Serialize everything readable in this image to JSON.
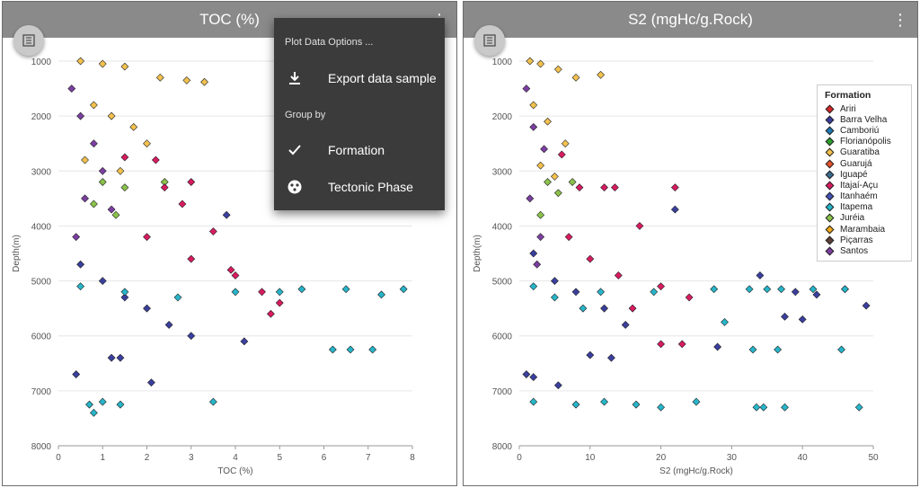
{
  "left_panel": {
    "title": "TOC (%)",
    "kebab": "⋮",
    "x_axis_label": "TOC (%)",
    "y_axis_label": "Depth(m)"
  },
  "right_panel": {
    "title": "S2 (mgHc/g.Rock)",
    "kebab": "⋮",
    "x_axis_label": "S2 (mgHc/g.Rock)",
    "y_axis_label": "Depth(m)"
  },
  "menu": {
    "title": "Plot Data Options ...",
    "export_label": "Export data sample",
    "group_by_label": "Group by",
    "formation_label": "Formation",
    "tectonic_label": "Tectonic Phase",
    "icons": [
      "download-icon",
      "check-icon",
      "tectonic-icon"
    ]
  },
  "legend": {
    "title": "Formation",
    "items": [
      {
        "label": "Ariri",
        "color": "#d62728"
      },
      {
        "label": "Barra Velha",
        "color": "#3a3f9e"
      },
      {
        "label": "Camboriú",
        "color": "#1f77b4"
      },
      {
        "label": "Florianópolis",
        "color": "#2ca02c"
      },
      {
        "label": "Guaratiba",
        "color": "#f2c14e"
      },
      {
        "label": "Guarujá",
        "color": "#e5532b"
      },
      {
        "label": "Iguapé",
        "color": "#3b6b8f"
      },
      {
        "label": "Itajaí-Açu",
        "color": "#d81b60"
      },
      {
        "label": "Itanhaém",
        "color": "#4052b5"
      },
      {
        "label": "Itapema",
        "color": "#26b5c9"
      },
      {
        "label": "Juréia",
        "color": "#8bc34a"
      },
      {
        "label": "Marambaia",
        "color": "#f0a81a"
      },
      {
        "label": "Piçarras",
        "color": "#5d4037"
      },
      {
        "label": "Santos",
        "color": "#7b3fa0"
      }
    ]
  },
  "chart_data": [
    {
      "type": "scatter",
      "title": "TOC (%)",
      "xlabel": "TOC (%)",
      "ylabel": "Depth(m)",
      "xlim": [
        0,
        8
      ],
      "ylim": [
        8000,
        1000
      ],
      "x_ticks": [
        "0",
        "1",
        "2",
        "3",
        "4",
        "5",
        "6",
        "7",
        "8"
      ],
      "y_ticks": [
        "1000",
        "2000",
        "3000",
        "4000",
        "5000",
        "6000",
        "7000",
        "8000"
      ],
      "grid": "horizontal",
      "series": [
        {
          "name": "Guaratiba",
          "color": "#f2c14e",
          "points": [
            [
              0.5,
              1000
            ],
            [
              1.0,
              1050
            ],
            [
              1.5,
              1100
            ],
            [
              2.3,
              1300
            ],
            [
              2.9,
              1350
            ],
            [
              3.3,
              1380
            ],
            [
              0.8,
              1800
            ],
            [
              1.2,
              2000
            ],
            [
              1.7,
              2200
            ],
            [
              2.0,
              2500
            ],
            [
              0.6,
              2800
            ],
            [
              1.4,
              3000
            ]
          ]
        },
        {
          "name": "Santos",
          "color": "#7b3fa0",
          "points": [
            [
              0.3,
              1500
            ],
            [
              0.5,
              2000
            ],
            [
              0.8,
              2500
            ],
            [
              1.0,
              3000
            ],
            [
              0.6,
              3500
            ],
            [
              0.4,
              4200
            ],
            [
              1.2,
              3700
            ]
          ]
        },
        {
          "name": "Juréia",
          "color": "#8bc34a",
          "points": [
            [
              1.0,
              3200
            ],
            [
              1.5,
              3300
            ],
            [
              2.4,
              3200
            ],
            [
              0.8,
              3600
            ],
            [
              1.3,
              3800
            ]
          ]
        },
        {
          "name": "Itajaí-Açu",
          "color": "#d81b60",
          "points": [
            [
              1.5,
              2750
            ],
            [
              2.2,
              2800
            ],
            [
              2.4,
              3300
            ],
            [
              3.0,
              3200
            ],
            [
              2.8,
              3600
            ],
            [
              2.0,
              4200
            ],
            [
              3.5,
              4100
            ],
            [
              3.9,
              4800
            ],
            [
              4.0,
              4900
            ],
            [
              4.6,
              5200
            ],
            [
              5.0,
              5400
            ],
            [
              4.8,
              5600
            ],
            [
              3.0,
              4600
            ]
          ]
        },
        {
          "name": "Barra Velha",
          "color": "#3a3f9e",
          "points": [
            [
              0.5,
              4700
            ],
            [
              1.0,
              5000
            ],
            [
              1.5,
              5300
            ],
            [
              2.0,
              5500
            ],
            [
              2.5,
              5800
            ],
            [
              3.0,
              6000
            ],
            [
              1.2,
              6400
            ],
            [
              1.4,
              6400
            ],
            [
              0.4,
              6700
            ],
            [
              2.1,
              6850
            ],
            [
              4.2,
              6100
            ],
            [
              3.8,
              3800
            ]
          ]
        },
        {
          "name": "Itapema",
          "color": "#26b5c9",
          "points": [
            [
              0.5,
              5100
            ],
            [
              1.5,
              5200
            ],
            [
              2.7,
              5300
            ],
            [
              4.0,
              5200
            ],
            [
              5.0,
              5200
            ],
            [
              5.5,
              5150
            ],
            [
              6.5,
              5150
            ],
            [
              7.3,
              5250
            ],
            [
              7.8,
              5150
            ],
            [
              6.2,
              6250
            ],
            [
              6.6,
              6250
            ],
            [
              7.1,
              6250
            ],
            [
              0.7,
              7250
            ],
            [
              1.0,
              7200
            ],
            [
              1.4,
              7250
            ],
            [
              3.5,
              7200
            ],
            [
              0.8,
              7400
            ]
          ]
        }
      ]
    },
    {
      "type": "scatter",
      "title": "S2 (mgHc/g.Rock)",
      "xlabel": "S2 (mgHc/g.Rock)",
      "ylabel": "Depth(m)",
      "xlim": [
        0,
        50
      ],
      "ylim": [
        8000,
        1000
      ],
      "x_ticks": [
        "0",
        "10",
        "20",
        "30",
        "40",
        "50"
      ],
      "y_ticks": [
        "1000",
        "2000",
        "3000",
        "4000",
        "5000",
        "6000",
        "7000",
        "8000"
      ],
      "grid": "horizontal",
      "legend_position": "top-right",
      "series": [
        {
          "name": "Guaratiba",
          "color": "#f2c14e",
          "points": [
            [
              1.5,
              1000
            ],
            [
              3.0,
              1050
            ],
            [
              5.5,
              1150
            ],
            [
              8.0,
              1300
            ],
            [
              11.5,
              1250
            ],
            [
              2.0,
              1800
            ],
            [
              4.0,
              2100
            ],
            [
              6.5,
              2500
            ],
            [
              3.0,
              2900
            ],
            [
              5.0,
              3100
            ]
          ]
        },
        {
          "name": "Santos",
          "color": "#7b3fa0",
          "points": [
            [
              1.0,
              1500
            ],
            [
              2.0,
              2200
            ],
            [
              3.5,
              2600
            ],
            [
              1.5,
              3500
            ],
            [
              3.0,
              4200
            ],
            [
              2.5,
              4700
            ]
          ]
        },
        {
          "name": "Juréia",
          "color": "#8bc34a",
          "points": [
            [
              4.0,
              3200
            ],
            [
              5.5,
              3400
            ],
            [
              7.5,
              3200
            ],
            [
              3.0,
              3800
            ]
          ]
        },
        {
          "name": "Itajaí-Açu",
          "color": "#d81b60",
          "points": [
            [
              6.0,
              2700
            ],
            [
              8.5,
              3300
            ],
            [
              12.0,
              3300
            ],
            [
              13.5,
              3300
            ],
            [
              22.0,
              3300
            ],
            [
              17.0,
              4000
            ],
            [
              7.0,
              4200
            ],
            [
              10.0,
              4600
            ],
            [
              14.0,
              4900
            ],
            [
              20.0,
              5100
            ],
            [
              24.0,
              5300
            ],
            [
              16.0,
              5500
            ],
            [
              20.0,
              6150
            ],
            [
              23.0,
              6150
            ]
          ]
        },
        {
          "name": "Barra Velha",
          "color": "#3a3f9e",
          "points": [
            [
              2.0,
              4500
            ],
            [
              5.0,
              5000
            ],
            [
              8.0,
              5200
            ],
            [
              12.0,
              5500
            ],
            [
              15.0,
              5800
            ],
            [
              10.0,
              6350
            ],
            [
              13.0,
              6400
            ],
            [
              28.0,
              6200
            ],
            [
              22.0,
              3700
            ],
            [
              34.0,
              4900
            ],
            [
              39.0,
              5200
            ],
            [
              42.0,
              5250
            ],
            [
              46.0,
              5150
            ],
            [
              49.0,
              5450
            ],
            [
              37.5,
              5650
            ],
            [
              40.0,
              5700
            ],
            [
              1.0,
              6700
            ],
            [
              2.0,
              6750
            ],
            [
              5.5,
              6900
            ]
          ]
        },
        {
          "name": "Itapema",
          "color": "#26b5c9",
          "points": [
            [
              2.0,
              5100
            ],
            [
              5.0,
              5300
            ],
            [
              9.0,
              5500
            ],
            [
              11.5,
              5200
            ],
            [
              19.0,
              5200
            ],
            [
              27.5,
              5150
            ],
            [
              32.5,
              5150
            ],
            [
              35.0,
              5150
            ],
            [
              37.0,
              5150
            ],
            [
              41.5,
              5150
            ],
            [
              46.0,
              5150
            ],
            [
              29.0,
              5750
            ],
            [
              33.0,
              6250
            ],
            [
              36.5,
              6250
            ],
            [
              45.5,
              6250
            ],
            [
              2.0,
              7200
            ],
            [
              8.0,
              7250
            ],
            [
              12.0,
              7200
            ],
            [
              16.5,
              7250
            ],
            [
              20.0,
              7300
            ],
            [
              25.0,
              7200
            ],
            [
              33.5,
              7300
            ],
            [
              34.5,
              7300
            ],
            [
              37.5,
              7300
            ],
            [
              48.0,
              7300
            ]
          ]
        }
      ]
    }
  ]
}
